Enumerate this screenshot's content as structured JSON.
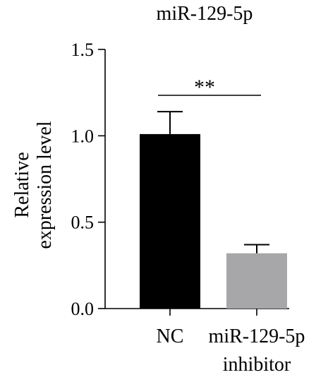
{
  "chart_data": {
    "type": "bar",
    "title": "miR-129-5p",
    "ylabel_lines": [
      "Relative",
      "expression level"
    ],
    "xlabel": "",
    "ylim": [
      0,
      1.5
    ],
    "yticks": [
      0.0,
      0.5,
      1.0,
      1.5
    ],
    "ytick_labels": [
      "0.0",
      "0.5",
      "1.0",
      "1.5"
    ],
    "categories": [
      {
        "label_lines": [
          "NC"
        ]
      },
      {
        "label_lines": [
          "miR-129-5p",
          "inhibitor"
        ]
      }
    ],
    "values": [
      1.01,
      0.32
    ],
    "error_upper": [
      1.14,
      0.37
    ],
    "bar_colors": [
      "#000000",
      "#a7a7a9"
    ],
    "significance": {
      "label": "**",
      "between": [
        0,
        1
      ]
    },
    "grid": false,
    "legend": "none"
  }
}
